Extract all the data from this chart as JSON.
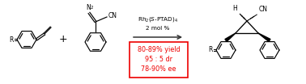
{
  "bg_color": "#ffffff",
  "arrow_color": "#333333",
  "box_edge_color": "#ee0000",
  "box_text_color": "#ee0000",
  "box_lines": [
    "80-89% yield",
    "95 : 5 dr",
    "78-90% ee"
  ],
  "catalyst_line1": "Rh$_2$($S$-PTAD)$_4$",
  "catalyst_line2": "2 mol %",
  "figsize": [
    3.78,
    1.04
  ],
  "dpi": 100
}
